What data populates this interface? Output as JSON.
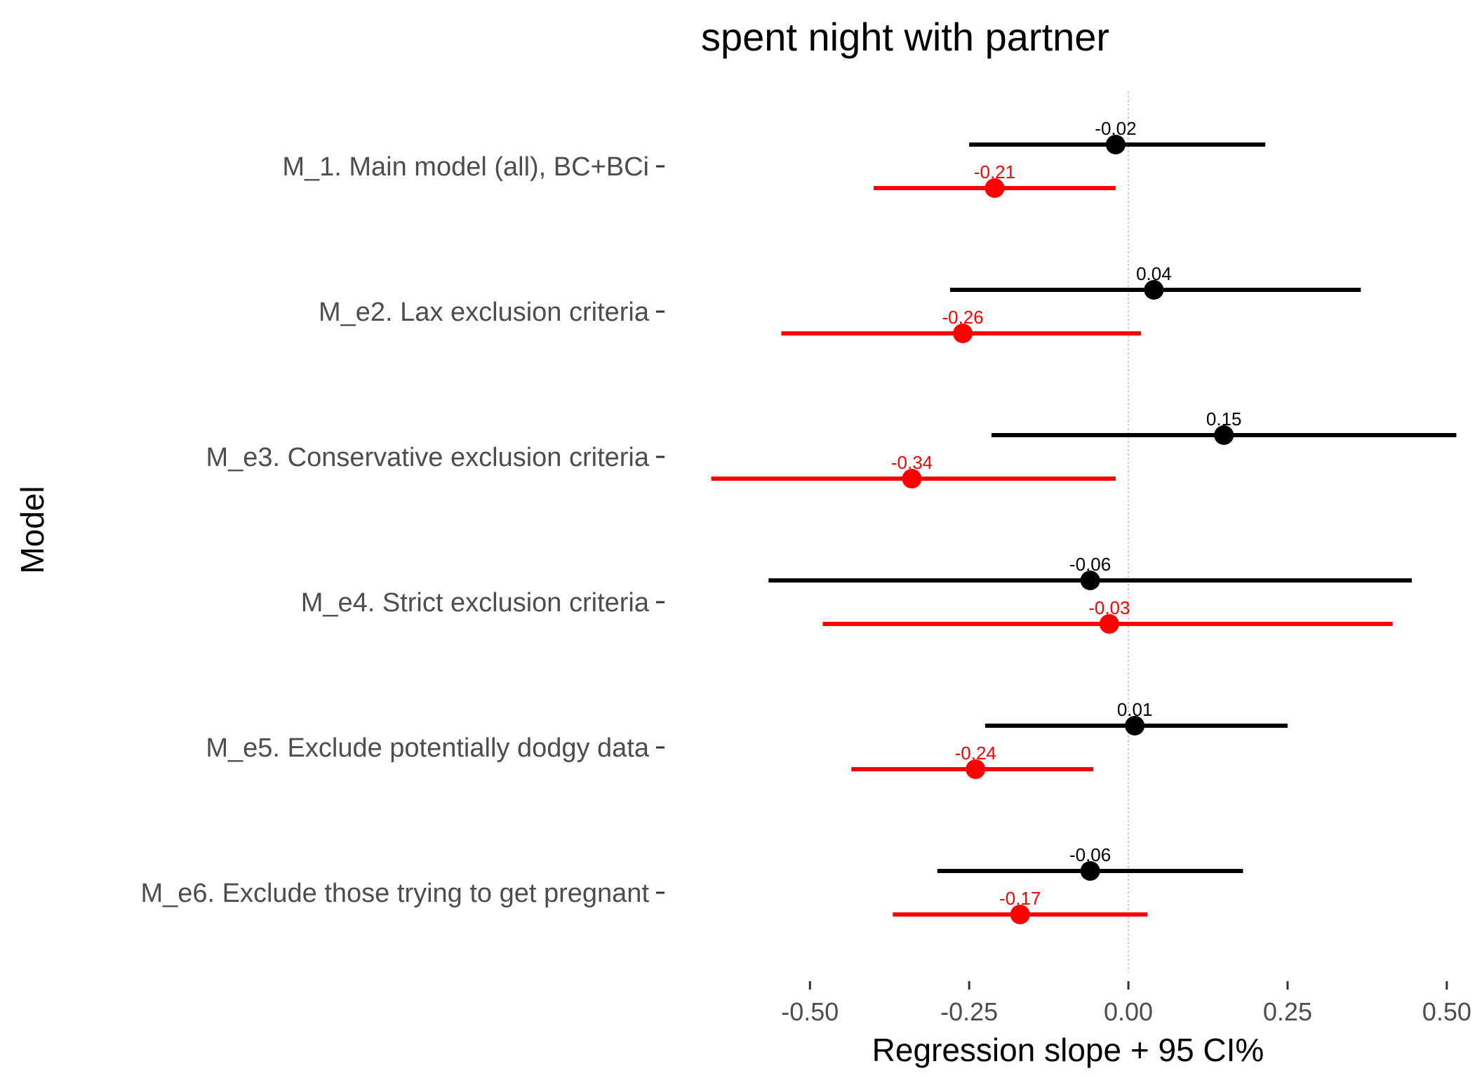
{
  "chart_data": {
    "type": "scatter",
    "title": "spent night with partner",
    "xlabel": "Regression slope + 95 CI%",
    "ylabel": "Model",
    "xlim": [
      -0.67,
      0.52
    ],
    "xticks": [
      "-0.50",
      "-0.25",
      "0.00",
      "0.25",
      "0.50"
    ],
    "reference_line_x": 0,
    "grid": false,
    "legend": "none",
    "categories": [
      "M_1. Main model (all), BC+BCi",
      "M_e2. Lax exclusion criteria",
      "M_e3. Conservative exclusion criteria",
      "M_e4. Strict exclusion criteria",
      "M_e5. Exclude potentially dodgy data",
      "M_e6. Exclude those trying to get pregnant"
    ],
    "series": [
      {
        "color": "#000000",
        "estimates": [
          -0.02,
          0.04,
          0.15,
          -0.06,
          0.01,
          -0.06
        ],
        "labels": [
          "-0.02",
          "0.04",
          "0.15",
          "-0.06",
          "0.01",
          "-0.06"
        ],
        "ci_low": [
          -0.25,
          -0.28,
          -0.215,
          -0.565,
          -0.225,
          -0.3
        ],
        "ci_high": [
          0.215,
          0.365,
          0.515,
          0.445,
          0.25,
          0.18
        ]
      },
      {
        "color": "#ff0000",
        "estimates": [
          -0.21,
          -0.26,
          -0.34,
          -0.03,
          -0.24,
          -0.17
        ],
        "labels": [
          "-0.21",
          "-0.26",
          "-0.34",
          "-0.03",
          "-0.24",
          "-0.17"
        ],
        "ci_low": [
          -0.4,
          -0.545,
          -0.655,
          -0.48,
          -0.435,
          -0.37
        ],
        "ci_high": [
          -0.02,
          0.02,
          -0.02,
          0.415,
          -0.055,
          0.03
        ]
      }
    ]
  }
}
